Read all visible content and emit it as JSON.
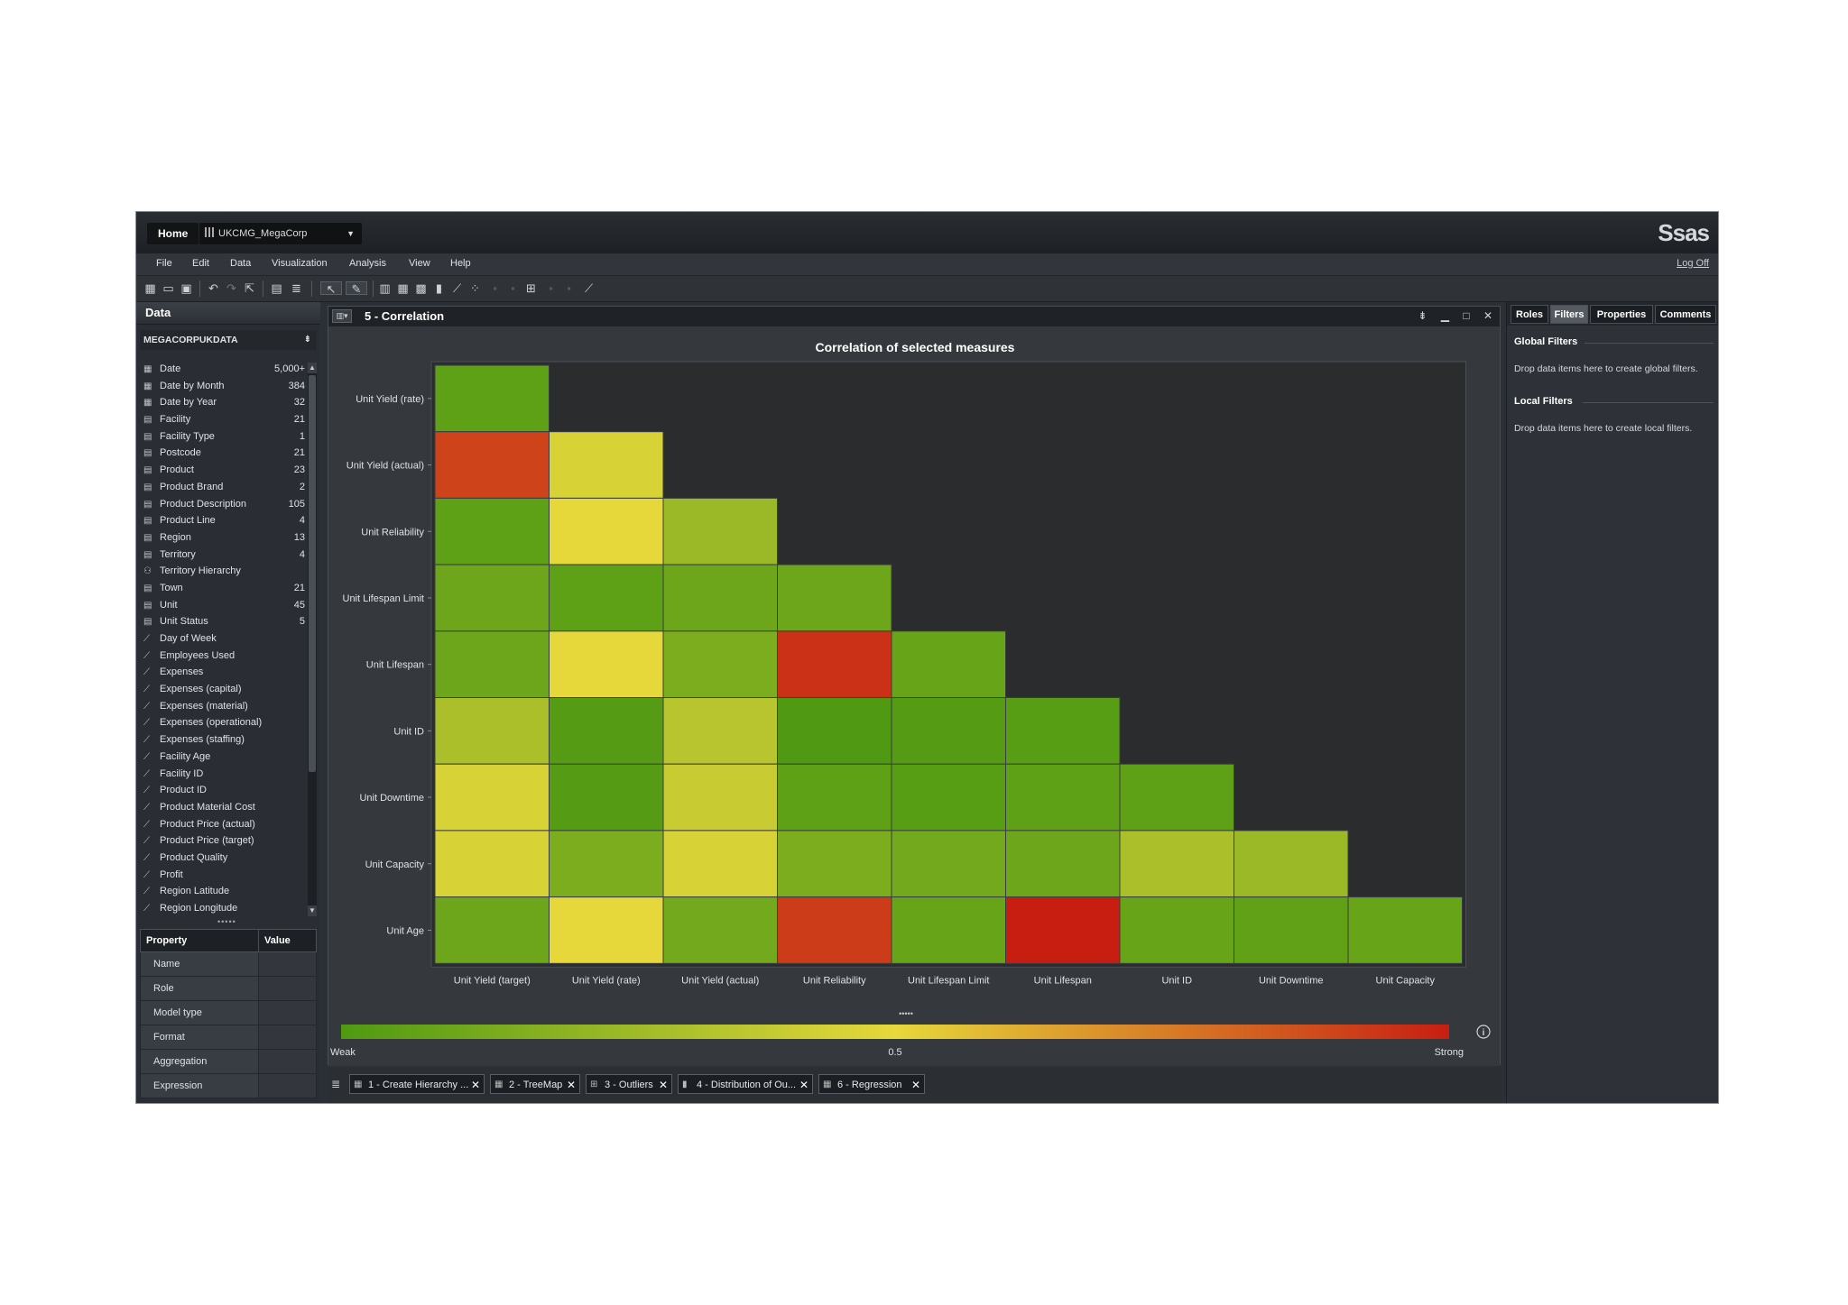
{
  "topbar": {
    "home": "Home",
    "project": "UKCMG_MegaCorp",
    "logo": "Ssas"
  },
  "menu": {
    "items": [
      "File",
      "Edit",
      "Data",
      "Visualization",
      "Analysis",
      "View",
      "Help"
    ],
    "logoff": "Log Off"
  },
  "data_pane": {
    "title": "Data",
    "source": "MEGACORPUKDATA",
    "items": [
      {
        "icon": "calendar",
        "label": "Date",
        "count": "5,000+"
      },
      {
        "icon": "calendar",
        "label": "Date by Month",
        "count": "384"
      },
      {
        "icon": "calendar",
        "label": "Date by Year",
        "count": "32"
      },
      {
        "icon": "category",
        "label": "Facility",
        "count": "21"
      },
      {
        "icon": "category",
        "label": "Facility Type",
        "count": "1"
      },
      {
        "icon": "category",
        "label": "Postcode",
        "count": "21"
      },
      {
        "icon": "category",
        "label": "Product",
        "count": "23"
      },
      {
        "icon": "category",
        "label": "Product Brand",
        "count": "2"
      },
      {
        "icon": "category",
        "label": "Product Description",
        "count": "105"
      },
      {
        "icon": "category",
        "label": "Product Line",
        "count": "4"
      },
      {
        "icon": "category",
        "label": "Region",
        "count": "13"
      },
      {
        "icon": "category",
        "label": "Territory",
        "count": "4"
      },
      {
        "icon": "hierarchy",
        "label": "Territory Hierarchy",
        "count": ""
      },
      {
        "icon": "category",
        "label": "Town",
        "count": "21"
      },
      {
        "icon": "category",
        "label": "Unit",
        "count": "45"
      },
      {
        "icon": "category",
        "label": "Unit Status",
        "count": "5"
      },
      {
        "icon": "measure",
        "label": "Day of Week",
        "count": ""
      },
      {
        "icon": "measure",
        "label": "Employees Used",
        "count": ""
      },
      {
        "icon": "measure",
        "label": "Expenses",
        "count": ""
      },
      {
        "icon": "measure",
        "label": "Expenses (capital)",
        "count": ""
      },
      {
        "icon": "measure",
        "label": "Expenses (material)",
        "count": ""
      },
      {
        "icon": "measure",
        "label": "Expenses (operational)",
        "count": ""
      },
      {
        "icon": "measure",
        "label": "Expenses (staffing)",
        "count": ""
      },
      {
        "icon": "measure",
        "label": "Facility Age",
        "count": ""
      },
      {
        "icon": "measure",
        "label": "Facility ID",
        "count": ""
      },
      {
        "icon": "measure",
        "label": "Product ID",
        "count": ""
      },
      {
        "icon": "measure",
        "label": "Product Material Cost",
        "count": ""
      },
      {
        "icon": "measure",
        "label": "Product Price (actual)",
        "count": ""
      },
      {
        "icon": "measure",
        "label": "Product Price (target)",
        "count": ""
      },
      {
        "icon": "measure",
        "label": "Product Quality",
        "count": ""
      },
      {
        "icon": "measure",
        "label": "Profit",
        "count": ""
      },
      {
        "icon": "measure",
        "label": "Region Latitude",
        "count": ""
      },
      {
        "icon": "measure",
        "label": "Region Longitude",
        "count": ""
      }
    ],
    "properties": {
      "header_property": "Property",
      "header_value": "Value",
      "rows": [
        "Name",
        "Role",
        "Model type",
        "Format",
        "Aggregation",
        "Expression"
      ]
    }
  },
  "visualization": {
    "tab_title": "5 - Correlation"
  },
  "chart_data": {
    "type": "heatmap",
    "title": "Correlation of selected measures",
    "x_categories": [
      "Unit Yield (target)",
      "Unit Yield (rate)",
      "Unit Yield (actual)",
      "Unit Reliability",
      "Unit Lifespan Limit",
      "Unit Lifespan",
      "Unit ID",
      "Unit Downtime",
      "Unit Capacity"
    ],
    "y_categories": [
      "Unit Yield (rate)",
      "Unit Yield (actual)",
      "Unit Reliability",
      "Unit Lifespan Limit",
      "Unit Lifespan",
      "Unit ID",
      "Unit Downtime",
      "Unit Capacity",
      "Unit Age"
    ],
    "cells": [
      [
        0.05
      ],
      [
        0.9,
        0.45
      ],
      [
        0.05,
        0.5,
        0.25
      ],
      [
        0.1,
        0.05,
        0.1,
        0.1
      ],
      [
        0.1,
        0.5,
        0.15,
        0.95,
        0.08
      ],
      [
        0.3,
        0.02,
        0.35,
        0.0,
        0.02,
        0.03
      ],
      [
        0.45,
        0.02,
        0.4,
        0.05,
        0.03,
        0.05,
        0.05
      ],
      [
        0.45,
        0.15,
        0.45,
        0.15,
        0.12,
        0.1,
        0.3,
        0.25
      ],
      [
        0.1,
        0.5,
        0.12,
        0.92,
        0.08,
        1.0,
        0.08,
        0.06,
        0.08
      ]
    ],
    "legend": {
      "min_label": "Weak",
      "mid_label": "0.5",
      "max_label": "Strong",
      "colors": [
        "#4f9a12",
        "#e6d83a",
        "#c81e12"
      ]
    }
  },
  "right_pane": {
    "tabs": [
      "Roles",
      "Filters",
      "Properties",
      "Comments"
    ],
    "active_tab": "Filters",
    "global_title": "Global Filters",
    "global_text": "Drop data items here to create global filters.",
    "local_title": "Local Filters",
    "local_text": "Drop data items here to create local filters."
  },
  "page_tabs": [
    "1 - Create Hierarchy ...",
    "2 - TreeMap",
    "3 - Outliers",
    "4 - Distribution of Ou...",
    "6 - Regression"
  ]
}
